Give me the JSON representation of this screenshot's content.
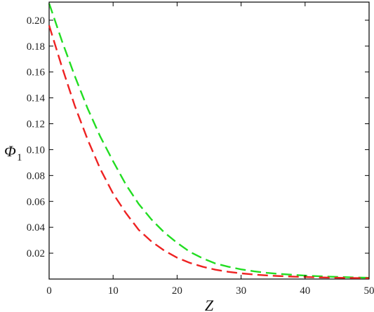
{
  "chart_data": {
    "type": "line",
    "title": "",
    "xlabel": "Z",
    "ylabel": "Φ",
    "ylabel_subscript": "1",
    "xlim": [
      0,
      50
    ],
    "ylim": [
      0,
      0.214
    ],
    "xticks": [
      0,
      10,
      20,
      30,
      40,
      50
    ],
    "xtick_labels": [
      "0",
      "10",
      "20",
      "30",
      "40",
      "50"
    ],
    "yticks": [
      0.02,
      0.04,
      0.06,
      0.08,
      0.1,
      0.12,
      0.14,
      0.16,
      0.18,
      0.2
    ],
    "ytick_labels": [
      "0.02",
      "0.04",
      "0.06",
      "0.08",
      "0.10",
      "0.12",
      "0.14",
      "0.16",
      "0.18",
      "0.20"
    ],
    "grid": false,
    "legend": "none",
    "series": [
      {
        "color": "#22dd22",
        "style": "dashed",
        "x": [
          0,
          2,
          4,
          6,
          8,
          10,
          12,
          14,
          16,
          18,
          20,
          22,
          24,
          26,
          28,
          30,
          32,
          34,
          36,
          38,
          40,
          42,
          44,
          46,
          48,
          50
        ],
        "y": [
          0.213,
          0.184,
          0.157,
          0.132,
          0.11,
          0.091,
          0.073,
          0.058,
          0.046,
          0.036,
          0.028,
          0.021,
          0.016,
          0.012,
          0.0095,
          0.0075,
          0.006,
          0.0048,
          0.004,
          0.0033,
          0.0027,
          0.0022,
          0.0018,
          0.0015,
          0.0012,
          0.001
        ]
      },
      {
        "color": "#ee2222",
        "style": "dashed",
        "x": [
          0,
          2,
          4,
          6,
          8,
          10,
          12,
          14,
          16,
          18,
          20,
          22,
          24,
          26,
          28,
          30,
          32,
          34,
          36,
          38,
          40,
          42,
          44,
          46,
          48,
          50
        ],
        "y": [
          0.196,
          0.164,
          0.134,
          0.108,
          0.085,
          0.066,
          0.051,
          0.038,
          0.029,
          0.022,
          0.0165,
          0.0125,
          0.0095,
          0.0072,
          0.0056,
          0.0044,
          0.0035,
          0.0028,
          0.0023,
          0.0019,
          0.0016,
          0.0013,
          0.0011,
          0.0009,
          0.0008,
          0.0007
        ]
      }
    ]
  }
}
